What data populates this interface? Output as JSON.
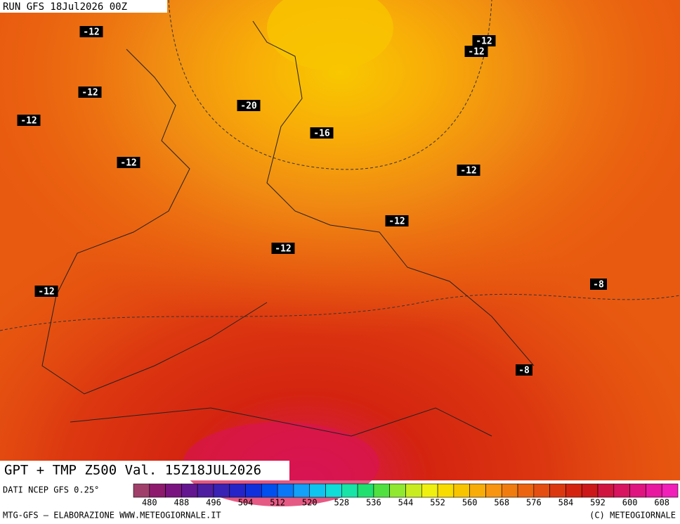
{
  "header": {
    "run": "RUN GFS 18Jul2026 00Z"
  },
  "map": {
    "title": "GPT + TMP Z500 Val. 15Z18JUL2026",
    "temp_labels": [
      "-12",
      "-12",
      "-12",
      "-12",
      "-12",
      "-12",
      "-12",
      "-12",
      "-12",
      "-12",
      "-20",
      "-16",
      "-8",
      "-8"
    ]
  },
  "legend": {
    "source": "DATI NCEP GFS 0.25°",
    "colors": [
      "#a0406a",
      "#8e1a6e",
      "#7a1480",
      "#641690",
      "#4e1ea0",
      "#3a22b4",
      "#2424c8",
      "#1030dc",
      "#0050ee",
      "#0a78f6",
      "#12a0f8",
      "#10c4f0",
      "#10dcd8",
      "#18e4a8",
      "#20e070",
      "#50e040",
      "#90e830",
      "#c8ec20",
      "#f0f010",
      "#f8dc00",
      "#f8c400",
      "#f8ac08",
      "#f89410",
      "#f07c10",
      "#ec6410",
      "#e44e10",
      "#dc3810",
      "#d42410",
      "#cc1818",
      "#d01440",
      "#d81460",
      "#e01480",
      "#e818a0",
      "#f020b8"
    ],
    "labels": [
      480,
      488,
      496,
      504,
      512,
      520,
      528,
      536,
      544,
      552,
      560,
      568,
      576,
      584,
      592,
      600,
      608
    ]
  },
  "footer": {
    "left": "MTG-GFS – ELABORAZIONE WWW.METEOGIORNALE.IT",
    "right": "(C) METEOGIORNALE"
  }
}
